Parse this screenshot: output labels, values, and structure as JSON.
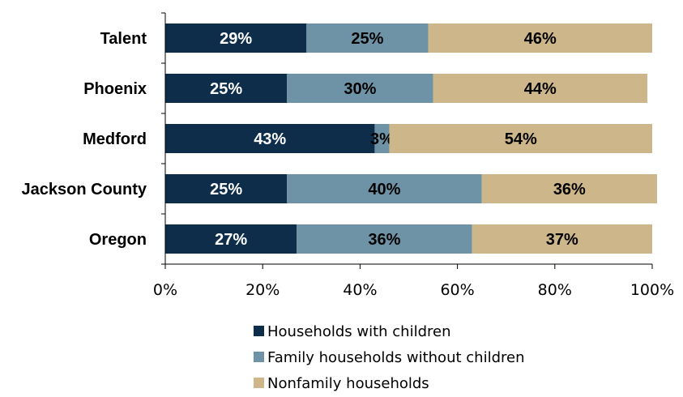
{
  "chart_data": {
    "type": "bar",
    "orientation": "horizontal",
    "stacked": true,
    "categories": [
      "Talent",
      "Phoenix",
      "Medford",
      "Jackson County",
      "Oregon"
    ],
    "series": [
      {
        "name": "Households with children",
        "color": "#0e2d4a",
        "values": [
          29,
          25,
          43,
          25,
          27
        ],
        "labels": [
          "29%",
          "25%",
          "43%",
          "25%",
          "27%"
        ]
      },
      {
        "name": "Family households without children",
        "color": "#6f93a6",
        "values": [
          25,
          30,
          3,
          40,
          36
        ],
        "labels": [
          "25%",
          "30%",
          "3%",
          "40%",
          "36%"
        ]
      },
      {
        "name": "Nonfamily households",
        "color": "#cdb68a",
        "values": [
          46,
          44,
          54,
          36,
          37
        ],
        "labels": [
          "46%",
          "44%",
          "54%",
          "36%",
          "37%"
        ]
      }
    ],
    "xlim": [
      0,
      100
    ],
    "xticks": [
      "0%",
      "20%",
      "40%",
      "60%",
      "80%",
      "100%"
    ],
    "label_colors": [
      "#ffffff",
      "#000000",
      "#000000"
    ],
    "grid": false,
    "legend_position": "bottom"
  }
}
